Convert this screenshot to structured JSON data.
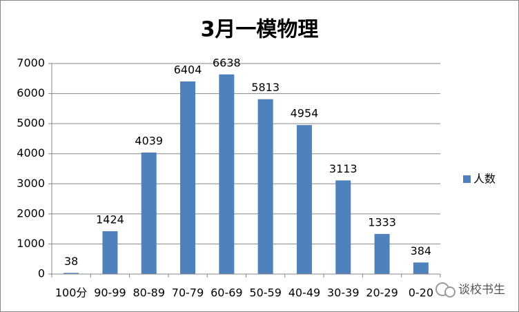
{
  "chart_data": {
    "type": "bar",
    "title": "3月一模物理",
    "categories": [
      "100分",
      "90-99",
      "80-89",
      "70-79",
      "60-69",
      "50-59",
      "40-49",
      "30-39",
      "20-29",
      "0-20"
    ],
    "series": [
      {
        "name": "人数",
        "color": "#4f81bd",
        "values": [
          38,
          1424,
          4039,
          6404,
          6638,
          5813,
          4954,
          3113,
          1333,
          384
        ]
      }
    ],
    "ylim": [
      0,
      7000
    ],
    "yticks": [
      0,
      1000,
      2000,
      3000,
      4000,
      5000,
      6000,
      7000
    ],
    "grid": true,
    "legend": "right",
    "watermark": "谈校书生"
  }
}
